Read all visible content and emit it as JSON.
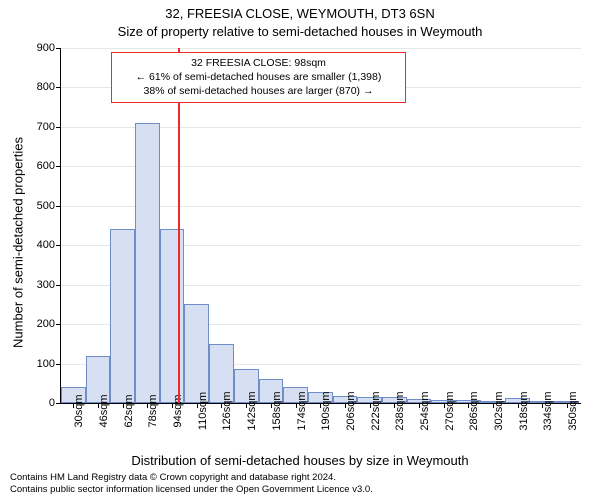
{
  "chart": {
    "type": "histogram",
    "title_line1": "32, FREESIA CLOSE, WEYMOUTH, DT3 6SN",
    "title_line2": "Size of property relative to semi-detached houses in Weymouth",
    "ylabel": "Number of semi-detached properties",
    "xlabel": "Distribution of semi-detached houses by size in Weymouth",
    "background_color": "#ffffff",
    "grid_color": "#e6e6e6",
    "axis_color": "#000000",
    "bar_fill": "#d6e0f2",
    "bar_border": "#6f8ec8",
    "marker_color": "#ee2b2b",
    "marker_value": 98,
    "font_family": "Arial",
    "title_fontsize": 13,
    "label_fontsize": 13,
    "tick_fontsize": 11,
    "annotation_fontsize": 10.5,
    "ylim": [
      0,
      900
    ],
    "ytick_step": 100,
    "xlim": [
      22,
      359
    ],
    "xtick_start": 30,
    "xtick_step": 16,
    "xtick_unit": "sqm",
    "bar_bin_width": 16,
    "categories_start": 22,
    "values": [
      40,
      120,
      440,
      710,
      440,
      250,
      150,
      85,
      60,
      40,
      28,
      18,
      16,
      14,
      10,
      8,
      8,
      6,
      12,
      4,
      2
    ],
    "annotation": {
      "line1": "32 FREESIA CLOSE: 98sqm",
      "line2": "← 61% of semi-detached houses are smaller (1,398)",
      "line3": "38% of semi-detached houses are larger (870) →",
      "border_color": "#ee2b2b",
      "background": "#ffffff"
    },
    "attribution": {
      "line1": "Contains HM Land Registry data © Crown copyright and database right 2024.",
      "line2": "Contains public sector information licensed under the Open Government Licence v3.0."
    }
  }
}
